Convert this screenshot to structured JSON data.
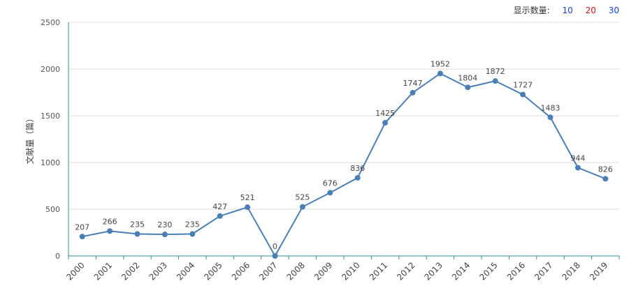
{
  "controls": {
    "label": "显示数量:",
    "options": [
      {
        "label": "10",
        "color": "#1a3fd6"
      },
      {
        "label": "20",
        "color": "#d0141a"
      },
      {
        "label": "30",
        "color": "#1a3fd6"
      }
    ]
  },
  "chart_data": {
    "type": "line",
    "ylabel": "文献量（篇）",
    "xlabel": "",
    "title": "",
    "ylim": [
      0,
      2500
    ],
    "yticks": [
      0,
      500,
      1000,
      1500,
      2000,
      2500
    ],
    "grid": true,
    "line_color": "#4a7fb5",
    "x": [
      "2000",
      "2001",
      "2002",
      "2003",
      "2004",
      "2005",
      "2006",
      "2007",
      "2008",
      "2009",
      "2010",
      "2011",
      "2012",
      "2013",
      "2014",
      "2015",
      "2016",
      "2017",
      "2018",
      "2019"
    ],
    "series": [
      {
        "values": [
          207,
          266,
          235,
          230,
          235,
          427,
          521,
          0,
          525,
          676,
          836,
          1425,
          1747,
          1952,
          1804,
          1872,
          1727,
          1483,
          944,
          826
        ]
      }
    ]
  }
}
